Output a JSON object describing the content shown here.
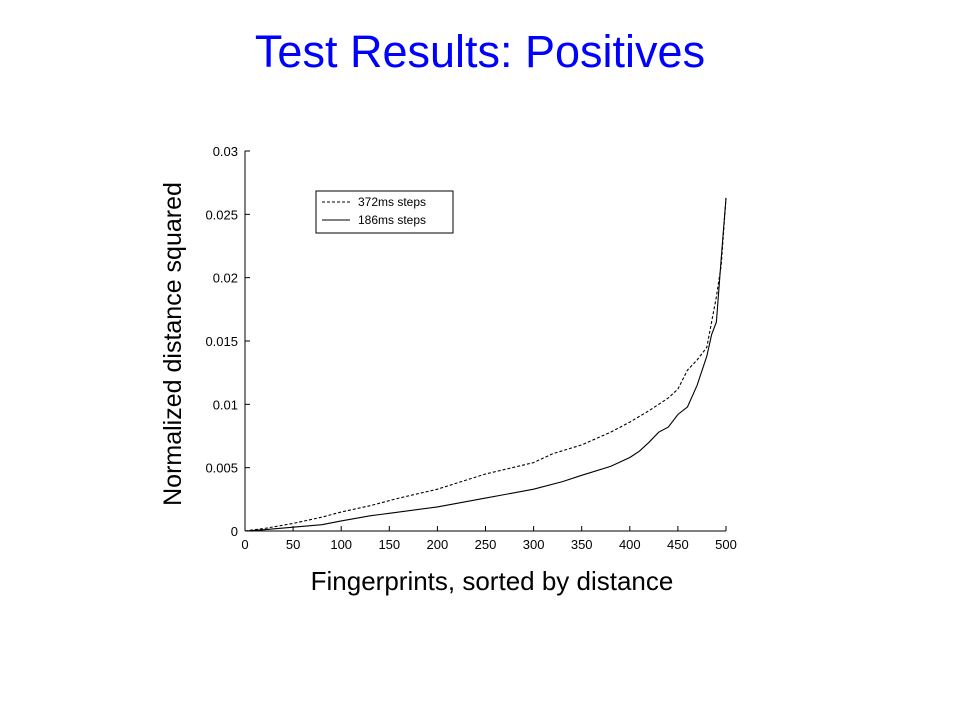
{
  "slide": {
    "title": "Test Results: Positives",
    "title_color": "#0000ff"
  },
  "chart_data": {
    "type": "line",
    "title": "",
    "xlabel": "Fingerprints, sorted by distance",
    "ylabel": "Normalized distance squared",
    "xlim": [
      0,
      500
    ],
    "ylim": [
      0,
      0.03
    ],
    "x_ticks": [
      0,
      50,
      100,
      150,
      200,
      250,
      300,
      350,
      400,
      450,
      500
    ],
    "y_ticks": [
      0,
      0.005,
      0.01,
      0.015,
      0.02,
      0.025,
      0.03
    ],
    "x_tick_labels": [
      "0",
      "50",
      "100",
      "150",
      "200",
      "250",
      "300",
      "350",
      "400",
      "450",
      "500"
    ],
    "y_tick_labels": [
      "0",
      "0.005",
      "0.01",
      "0.015",
      "0.02",
      "0.025",
      "0.03"
    ],
    "grid": false,
    "legend_position": "top-left",
    "series": [
      {
        "name": "372ms steps",
        "style": "dashed",
        "color": "#000000",
        "x": [
          0,
          20,
          50,
          80,
          100,
          130,
          160,
          200,
          250,
          300,
          320,
          350,
          380,
          400,
          420,
          440,
          450,
          460,
          470,
          480,
          485,
          490,
          495,
          500
        ],
        "y": [
          0,
          0.0002,
          0.0006,
          0.0011,
          0.0015,
          0.002,
          0.0026,
          0.0033,
          0.0045,
          0.0054,
          0.0061,
          0.0068,
          0.0078,
          0.0086,
          0.0095,
          0.0105,
          0.0112,
          0.0127,
          0.0135,
          0.0145,
          0.0165,
          0.0185,
          0.021,
          0.0263
        ]
      },
      {
        "name": "186ms steps",
        "style": "solid",
        "color": "#000000",
        "x": [
          0,
          20,
          50,
          80,
          100,
          130,
          150,
          200,
          250,
          300,
          330,
          350,
          380,
          400,
          410,
          420,
          430,
          440,
          450,
          460,
          470,
          480,
          485,
          490,
          495,
          500
        ],
        "y": [
          0,
          0.0001,
          0.0003,
          0.0005,
          0.0008,
          0.0012,
          0.0014,
          0.0019,
          0.0026,
          0.0033,
          0.0039,
          0.0044,
          0.0051,
          0.0058,
          0.0063,
          0.007,
          0.0078,
          0.0082,
          0.0092,
          0.0098,
          0.0115,
          0.0138,
          0.0155,
          0.0165,
          0.0215,
          0.0263
        ]
      }
    ]
  }
}
